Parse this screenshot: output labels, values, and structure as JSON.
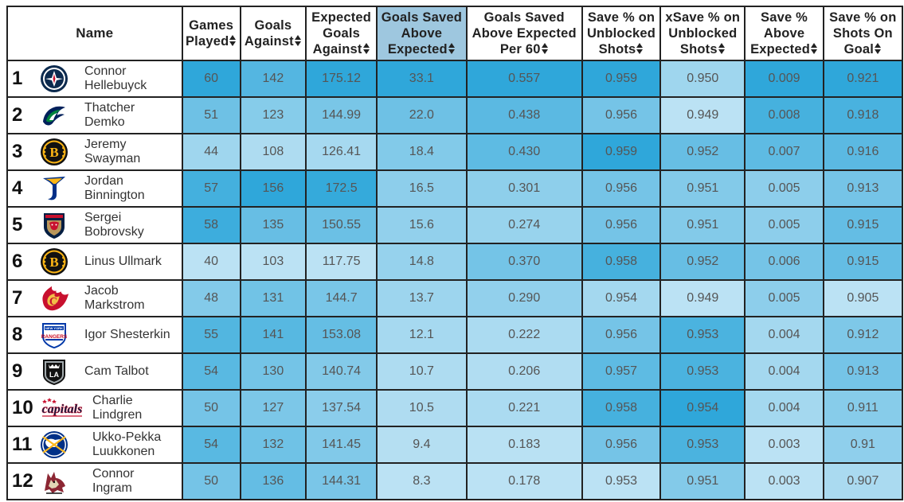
{
  "columns": [
    {
      "key": "name",
      "lines": [
        "Name"
      ],
      "sortable": false
    },
    {
      "key": "gp",
      "lines": [
        "Games",
        "Played"
      ],
      "sortable": true
    },
    {
      "key": "ga",
      "lines": [
        "Goals",
        "Against"
      ],
      "sortable": true
    },
    {
      "key": "xga",
      "lines": [
        "Expected",
        "Goals",
        "Against"
      ],
      "sortable": true
    },
    {
      "key": "gsax",
      "lines": [
        "Goals Saved",
        "Above",
        "Expected"
      ],
      "sortable": true,
      "sorted": true
    },
    {
      "key": "gsax60",
      "lines": [
        "Goals Saved",
        "Above Expected",
        "Per 60"
      ],
      "sortable": true
    },
    {
      "key": "svu",
      "lines": [
        "Save % on",
        "Unblocked",
        "Shots"
      ],
      "sortable": true
    },
    {
      "key": "xsvu",
      "lines": [
        "xSave % on",
        "Unblocked",
        "Shots"
      ],
      "sortable": true
    },
    {
      "key": "svax",
      "lines": [
        "Save %",
        "Above",
        "Expected"
      ],
      "sortable": true
    },
    {
      "key": "svsog",
      "lines": [
        "Save % on",
        "Shots On",
        "Goal"
      ],
      "sortable": true
    }
  ],
  "rows": [
    {
      "rank": "1",
      "first": "Connor",
      "last": "Hellebuyck",
      "team": "WPG",
      "logo": "jets-logo-icon",
      "gp": "60",
      "ga": "142",
      "xga": "175.12",
      "gsax": "33.1",
      "gsax60": "0.557",
      "svu": "0.959",
      "xsvu": "0.950",
      "svax": "0.009",
      "svsog": "0.921"
    },
    {
      "rank": "2",
      "first": "Thatcher",
      "last": "Demko",
      "team": "VAN",
      "logo": "canucks-logo-icon",
      "gp": "51",
      "ga": "123",
      "xga": "144.99",
      "gsax": "22.0",
      "gsax60": "0.438",
      "svu": "0.956",
      "xsvu": "0.949",
      "svax": "0.008",
      "svsog": "0.918"
    },
    {
      "rank": "3",
      "first": "Jeremy",
      "last": "Swayman",
      "team": "BOS",
      "logo": "bruins-logo-icon",
      "gp": "44",
      "ga": "108",
      "xga": "126.41",
      "gsax": "18.4",
      "gsax60": "0.430",
      "svu": "0.959",
      "xsvu": "0.952",
      "svax": "0.007",
      "svsog": "0.916"
    },
    {
      "rank": "4",
      "first": "Jordan",
      "last": "Binnington",
      "team": "STL",
      "logo": "blues-logo-icon",
      "gp": "57",
      "ga": "156",
      "xga": "172.5",
      "gsax": "16.5",
      "gsax60": "0.301",
      "svu": "0.956",
      "xsvu": "0.951",
      "svax": "0.005",
      "svsog": "0.913"
    },
    {
      "rank": "5",
      "first": "Sergei",
      "last": "Bobrovsky",
      "team": "FLA",
      "logo": "panthers-logo-icon",
      "gp": "58",
      "ga": "135",
      "xga": "150.55",
      "gsax": "15.6",
      "gsax60": "0.274",
      "svu": "0.956",
      "xsvu": "0.951",
      "svax": "0.005",
      "svsog": "0.915"
    },
    {
      "rank": "6",
      "first": "Linus Ullmark",
      "last": "",
      "team": "BOS",
      "logo": "bruins-logo-icon",
      "gp": "40",
      "ga": "103",
      "xga": "117.75",
      "gsax": "14.8",
      "gsax60": "0.370",
      "svu": "0.958",
      "xsvu": "0.952",
      "svax": "0.006",
      "svsog": "0.915"
    },
    {
      "rank": "7",
      "first": "Jacob",
      "last": "Markstrom",
      "team": "CGY",
      "logo": "flames-logo-icon",
      "gp": "48",
      "ga": "131",
      "xga": "144.7",
      "gsax": "13.7",
      "gsax60": "0.290",
      "svu": "0.954",
      "xsvu": "0.949",
      "svax": "0.005",
      "svsog": "0.905"
    },
    {
      "rank": "8",
      "first": "Igor Shesterkin",
      "last": "",
      "team": "NYR",
      "logo": "rangers-logo-icon",
      "gp": "55",
      "ga": "141",
      "xga": "153.08",
      "gsax": "12.1",
      "gsax60": "0.222",
      "svu": "0.956",
      "xsvu": "0.953",
      "svax": "0.004",
      "svsog": "0.912"
    },
    {
      "rank": "9",
      "first": "Cam Talbot",
      "last": "",
      "team": "LAK",
      "logo": "kings-logo-icon",
      "gp": "54",
      "ga": "130",
      "xga": "140.74",
      "gsax": "10.7",
      "gsax60": "0.206",
      "svu": "0.957",
      "xsvu": "0.953",
      "svax": "0.004",
      "svsog": "0.913"
    },
    {
      "rank": "10",
      "first": "Charlie",
      "last": "Lindgren",
      "team": "WSH",
      "logo": "capitals-logo-icon",
      "gp": "50",
      "ga": "127",
      "xga": "137.54",
      "gsax": "10.5",
      "gsax60": "0.221",
      "svu": "0.958",
      "xsvu": "0.954",
      "svax": "0.004",
      "svsog": "0.911"
    },
    {
      "rank": "11",
      "first": "Ukko-Pekka",
      "last": "Luukkonen",
      "team": "BUF",
      "logo": "sabres-logo-icon",
      "gp": "54",
      "ga": "132",
      "xga": "141.45",
      "gsax": "9.4",
      "gsax60": "0.183",
      "svu": "0.956",
      "xsvu": "0.953",
      "svax": "0.003",
      "svsog": "0.91"
    },
    {
      "rank": "12",
      "first": "Connor",
      "last": "Ingram",
      "team": "ARI",
      "logo": "coyotes-logo-icon",
      "gp": "50",
      "ga": "136",
      "xga": "144.31",
      "gsax": "8.3",
      "gsax60": "0.178",
      "svu": "0.953",
      "xsvu": "0.951",
      "svax": "0.003",
      "svsog": "0.907"
    }
  ],
  "colors": {
    "header_bg": "#ffffff",
    "sorted_header_bg": "#9ec7df",
    "scale_low": "#d4ecf8",
    "scale_high": "#2fa7da",
    "border": "#222222"
  }
}
